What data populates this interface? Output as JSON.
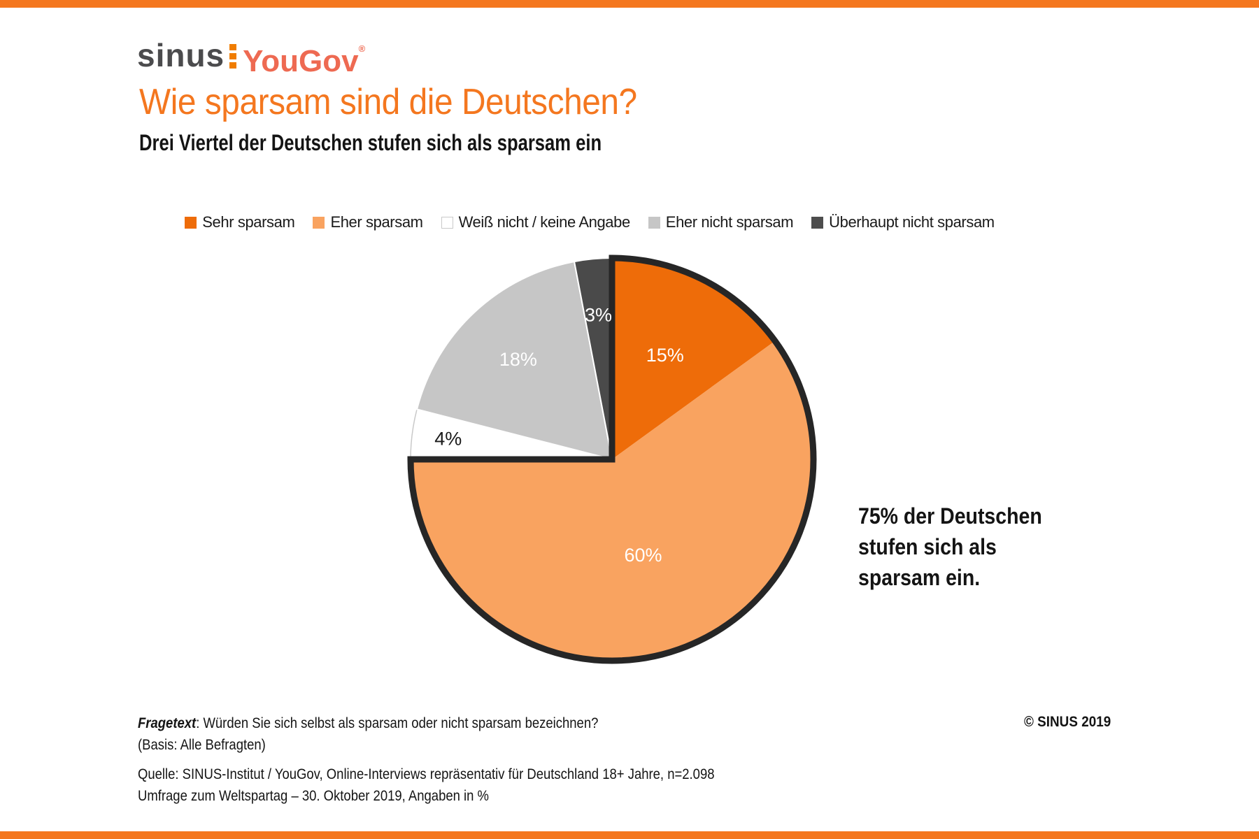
{
  "page": {
    "background": "#FFFFFF",
    "accent_bar_color": "#F4771F"
  },
  "logo": {
    "sinus_text": "sinus",
    "yougov_text": "YouGov",
    "registered_mark": "®",
    "sinus_color": "#4B4B4D",
    "yougov_color": "#EE6A52",
    "colon_color": "#F07D00"
  },
  "header": {
    "title": "Wie sparsam sind die Deutschen?",
    "title_color": "#F4771F",
    "subtitle": "Drei Viertel der Deutschen stufen sich als sparsam ein"
  },
  "legend": {
    "items": [
      {
        "label": "Sehr sparsam",
        "color": "#EE6C09",
        "border": "none"
      },
      {
        "label": "Eher sparsam",
        "color": "#F9A360",
        "border": "none"
      },
      {
        "label": "Weiß nicht / keine Angabe",
        "color": "#FFFFFF",
        "border": "#C9C9C9"
      },
      {
        "label": "Eher nicht sparsam",
        "color": "#C6C6C6",
        "border": "none"
      },
      {
        "label": "Überhaupt nicht sparsam",
        "color": "#4D4D4D",
        "border": "none"
      }
    ]
  },
  "chart_data": {
    "type": "pie",
    "title": "Wie sparsam sind die Deutschen?",
    "categories": [
      "Sehr sparsam",
      "Eher sparsam",
      "Weiß nicht / keine Angabe",
      "Eher nicht sparsam",
      "Überhaupt nicht sparsam"
    ],
    "ids": [
      "sehr-sparsam",
      "eher-sparsam",
      "weiss-nicht-keine-angabe",
      "eher-nicht-sparsam",
      "ueberhaupt-nicht-sparsam"
    ],
    "values": [
      15,
      60,
      4,
      18,
      3
    ],
    "unit": "%",
    "colors": [
      "#EE6C09",
      "#F9A360",
      "#FFFFFF",
      "#C6C6C6",
      "#4A4A4A"
    ],
    "slice_stroke_colors": [
      "none",
      "none",
      "#C9C9C9",
      "#FFFFFF",
      "#FFFFFF"
    ],
    "slice_stroke_widths": [
      0,
      0,
      1.5,
      2,
      2
    ],
    "label_colors": [
      "#FFFFFF",
      "#FFFFFF",
      "#1A1A1A",
      "#FFFFFF",
      "#FFFFFF"
    ],
    "label_radius_fractions": [
      0.58,
      0.5,
      0.82,
      0.68,
      0.72
    ],
    "start_angle_deg": 0,
    "direction": "clockwise",
    "radius_px": 288,
    "legend_position": "top",
    "highlight": {
      "slice_indexes": [
        0,
        1
      ],
      "sum_label": "75%",
      "outline_color": "#262626",
      "outline_width": 9
    }
  },
  "callout": {
    "lines": [
      "75% der Deutschen",
      "stufen sich als",
      "sparsam ein."
    ]
  },
  "footnote": {
    "label": "Fragetext",
    "question": ": Würden Sie sich selbst als sparsam oder nicht sparsam bezeichnen?",
    "basis": "(Basis: Alle Befragten)"
  },
  "source": {
    "line1": "Quelle: SINUS-Institut / YouGov, Online-Interviews repräsentativ für Deutschland 18+ Jahre, n=2.098",
    "line2": "Umfrage zum Weltspartag – 30. Oktober 2019, Angaben in %"
  },
  "copyright": "© SINUS 2019"
}
